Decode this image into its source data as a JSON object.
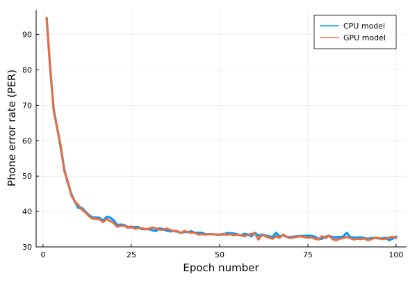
{
  "chart_data": {
    "type": "line",
    "title": "",
    "xlabel": "Epoch number",
    "ylabel": "Phone error rate (PER)",
    "xlim": [
      -1.97,
      102.97
    ],
    "ylim": [
      30,
      97
    ],
    "xticks": [
      0,
      25,
      50,
      75,
      100
    ],
    "yticks": [
      30,
      40,
      50,
      60,
      70,
      80,
      90
    ],
    "grid": true,
    "legend_position": "top-right",
    "series": [
      {
        "name": "CPU model",
        "color": "#009AFA",
        "x": [
          1,
          2,
          3,
          4,
          5,
          6,
          7,
          8,
          9,
          10,
          11,
          12,
          13,
          14,
          15,
          16,
          17,
          18,
          19,
          20,
          21,
          22,
          23,
          24,
          25,
          26,
          27,
          28,
          29,
          30,
          31,
          32,
          33,
          34,
          35,
          36,
          37,
          38,
          39,
          40,
          41,
          42,
          43,
          44,
          45,
          46,
          47,
          48,
          49,
          50,
          51,
          52,
          53,
          54,
          55,
          56,
          57,
          58,
          59,
          60,
          61,
          62,
          63,
          64,
          65,
          66,
          67,
          68,
          69,
          70,
          71,
          72,
          73,
          74,
          75,
          76,
          77,
          78,
          79,
          80,
          81,
          82,
          83,
          84,
          85,
          86,
          87,
          88,
          89,
          90,
          91,
          92,
          93,
          94,
          95,
          96,
          97,
          98,
          99,
          100
        ],
        "y": [
          94.7,
          80.5,
          69.0,
          63.5,
          58.0,
          52.0,
          48.0,
          45.0,
          42.8,
          41.0,
          41.0,
          40.0,
          39.0,
          38.3,
          38.3,
          38.2,
          37.4,
          38.5,
          38.3,
          37.5,
          36.2,
          36.3,
          36.2,
          35.6,
          35.5,
          35.6,
          35.6,
          35.0,
          35.0,
          35.0,
          34.7,
          34.5,
          35.3,
          35.0,
          34.6,
          34.4,
          34.5,
          34.3,
          34.0,
          34.2,
          34.2,
          34.4,
          34.0,
          34.0,
          34.0,
          33.6,
          33.6,
          33.6,
          33.5,
          33.5,
          33.5,
          33.9,
          33.9,
          33.8,
          33.6,
          33.2,
          33.7,
          33.5,
          33.0,
          34.0,
          33.2,
          33.5,
          33.2,
          33.0,
          32.8,
          34.0,
          32.9,
          33.3,
          32.8,
          32.8,
          32.9,
          33.0,
          33.1,
          33.1,
          33.2,
          33.1,
          32.9,
          32.2,
          32.3,
          32.9,
          33.1,
          32.8,
          32.7,
          32.8,
          32.9,
          34.0,
          32.8,
          32.6,
          32.6,
          32.7,
          32.5,
          32.3,
          32.5,
          32.5,
          32.4,
          32.4,
          32.6,
          31.9,
          32.3,
          32.9
        ]
      },
      {
        "name": "GPU model",
        "color": "#E26F46",
        "x": [
          1,
          2,
          3,
          4,
          5,
          6,
          7,
          8,
          9,
          10,
          11,
          12,
          13,
          14,
          15,
          16,
          17,
          18,
          19,
          20,
          21,
          22,
          23,
          24,
          25,
          26,
          27,
          28,
          29,
          30,
          31,
          32,
          33,
          34,
          35,
          36,
          37,
          38,
          39,
          40,
          41,
          42,
          43,
          44,
          45,
          46,
          47,
          48,
          49,
          50,
          51,
          52,
          53,
          54,
          55,
          56,
          57,
          58,
          59,
          60,
          61,
          62,
          63,
          64,
          65,
          66,
          67,
          68,
          69,
          70,
          71,
          72,
          73,
          74,
          75,
          76,
          77,
          78,
          79,
          80,
          81,
          82,
          83,
          84,
          85,
          86,
          87,
          88,
          89,
          90,
          91,
          92,
          93,
          94,
          95,
          96,
          97,
          98,
          99,
          100
        ],
        "y": [
          94.7,
          81.0,
          68.5,
          63.5,
          58.5,
          51.5,
          48.5,
          44.6,
          42.8,
          41.8,
          40.5,
          39.8,
          38.7,
          38.0,
          38.0,
          37.8,
          37.0,
          37.9,
          37.3,
          36.7,
          35.7,
          36.0,
          36.0,
          35.4,
          35.8,
          35.2,
          35.3,
          35.3,
          35.0,
          35.2,
          35.5,
          35.2,
          34.9,
          34.8,
          35.2,
          34.8,
          34.5,
          34.5,
          33.9,
          34.5,
          34.2,
          34.0,
          34.0,
          33.5,
          33.6,
          33.5,
          33.6,
          33.6,
          33.5,
          33.4,
          33.7,
          33.4,
          33.6,
          33.3,
          33.5,
          33.3,
          33.0,
          33.4,
          33.7,
          33.8,
          32.1,
          33.4,
          33.0,
          32.6,
          32.3,
          33.0,
          32.6,
          33.5,
          32.9,
          32.5,
          32.7,
          32.9,
          33.0,
          32.8,
          32.6,
          32.7,
          32.3,
          32.1,
          33.0,
          32.5,
          33.2,
          32.2,
          31.9,
          32.3,
          32.5,
          32.8,
          32.5,
          32.1,
          32.3,
          32.2,
          32.4,
          31.9,
          32.2,
          32.6,
          32.5,
          32.2,
          32.3,
          32.6,
          32.9,
          32.5
        ]
      }
    ]
  }
}
